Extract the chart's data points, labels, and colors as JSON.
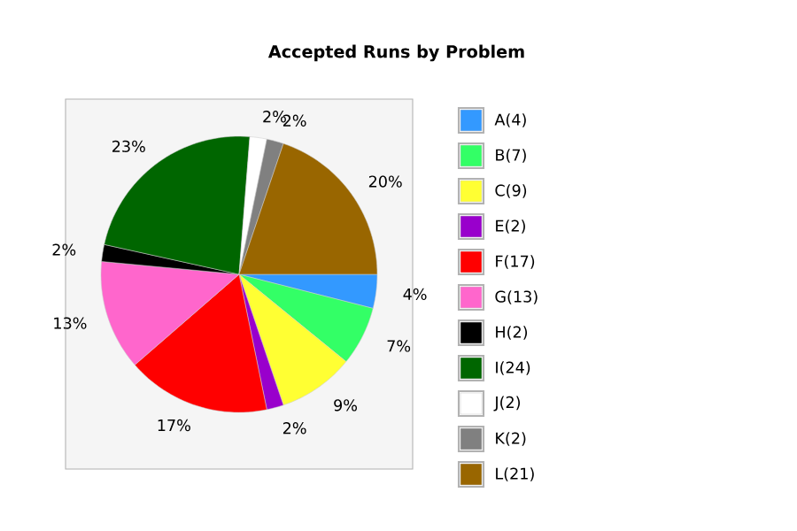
{
  "chart_data": {
    "type": "pie",
    "title": "Accepted Runs by Problem",
    "categories": [
      "A(4)",
      "B(7)",
      "C(9)",
      "E(2)",
      "F(17)",
      "G(13)",
      "H(2)",
      "I(24)",
      "J(2)",
      "K(2)",
      "L(21)"
    ],
    "values": [
      4,
      7,
      9,
      2,
      17,
      13,
      2,
      23,
      2,
      2,
      20
    ],
    "value_labels": [
      "4%",
      "7%",
      "9%",
      "2%",
      "17%",
      "13%",
      "2%",
      "23%",
      "2%",
      "2%",
      "20%"
    ],
    "colors": [
      "#3399ff",
      "#33ff66",
      "#ffff33",
      "#9900cc",
      "#ff0000",
      "#ff66cc",
      "#000000",
      "#006600",
      "#ffffff",
      "#808080",
      "#996600"
    ],
    "legend": "right"
  }
}
